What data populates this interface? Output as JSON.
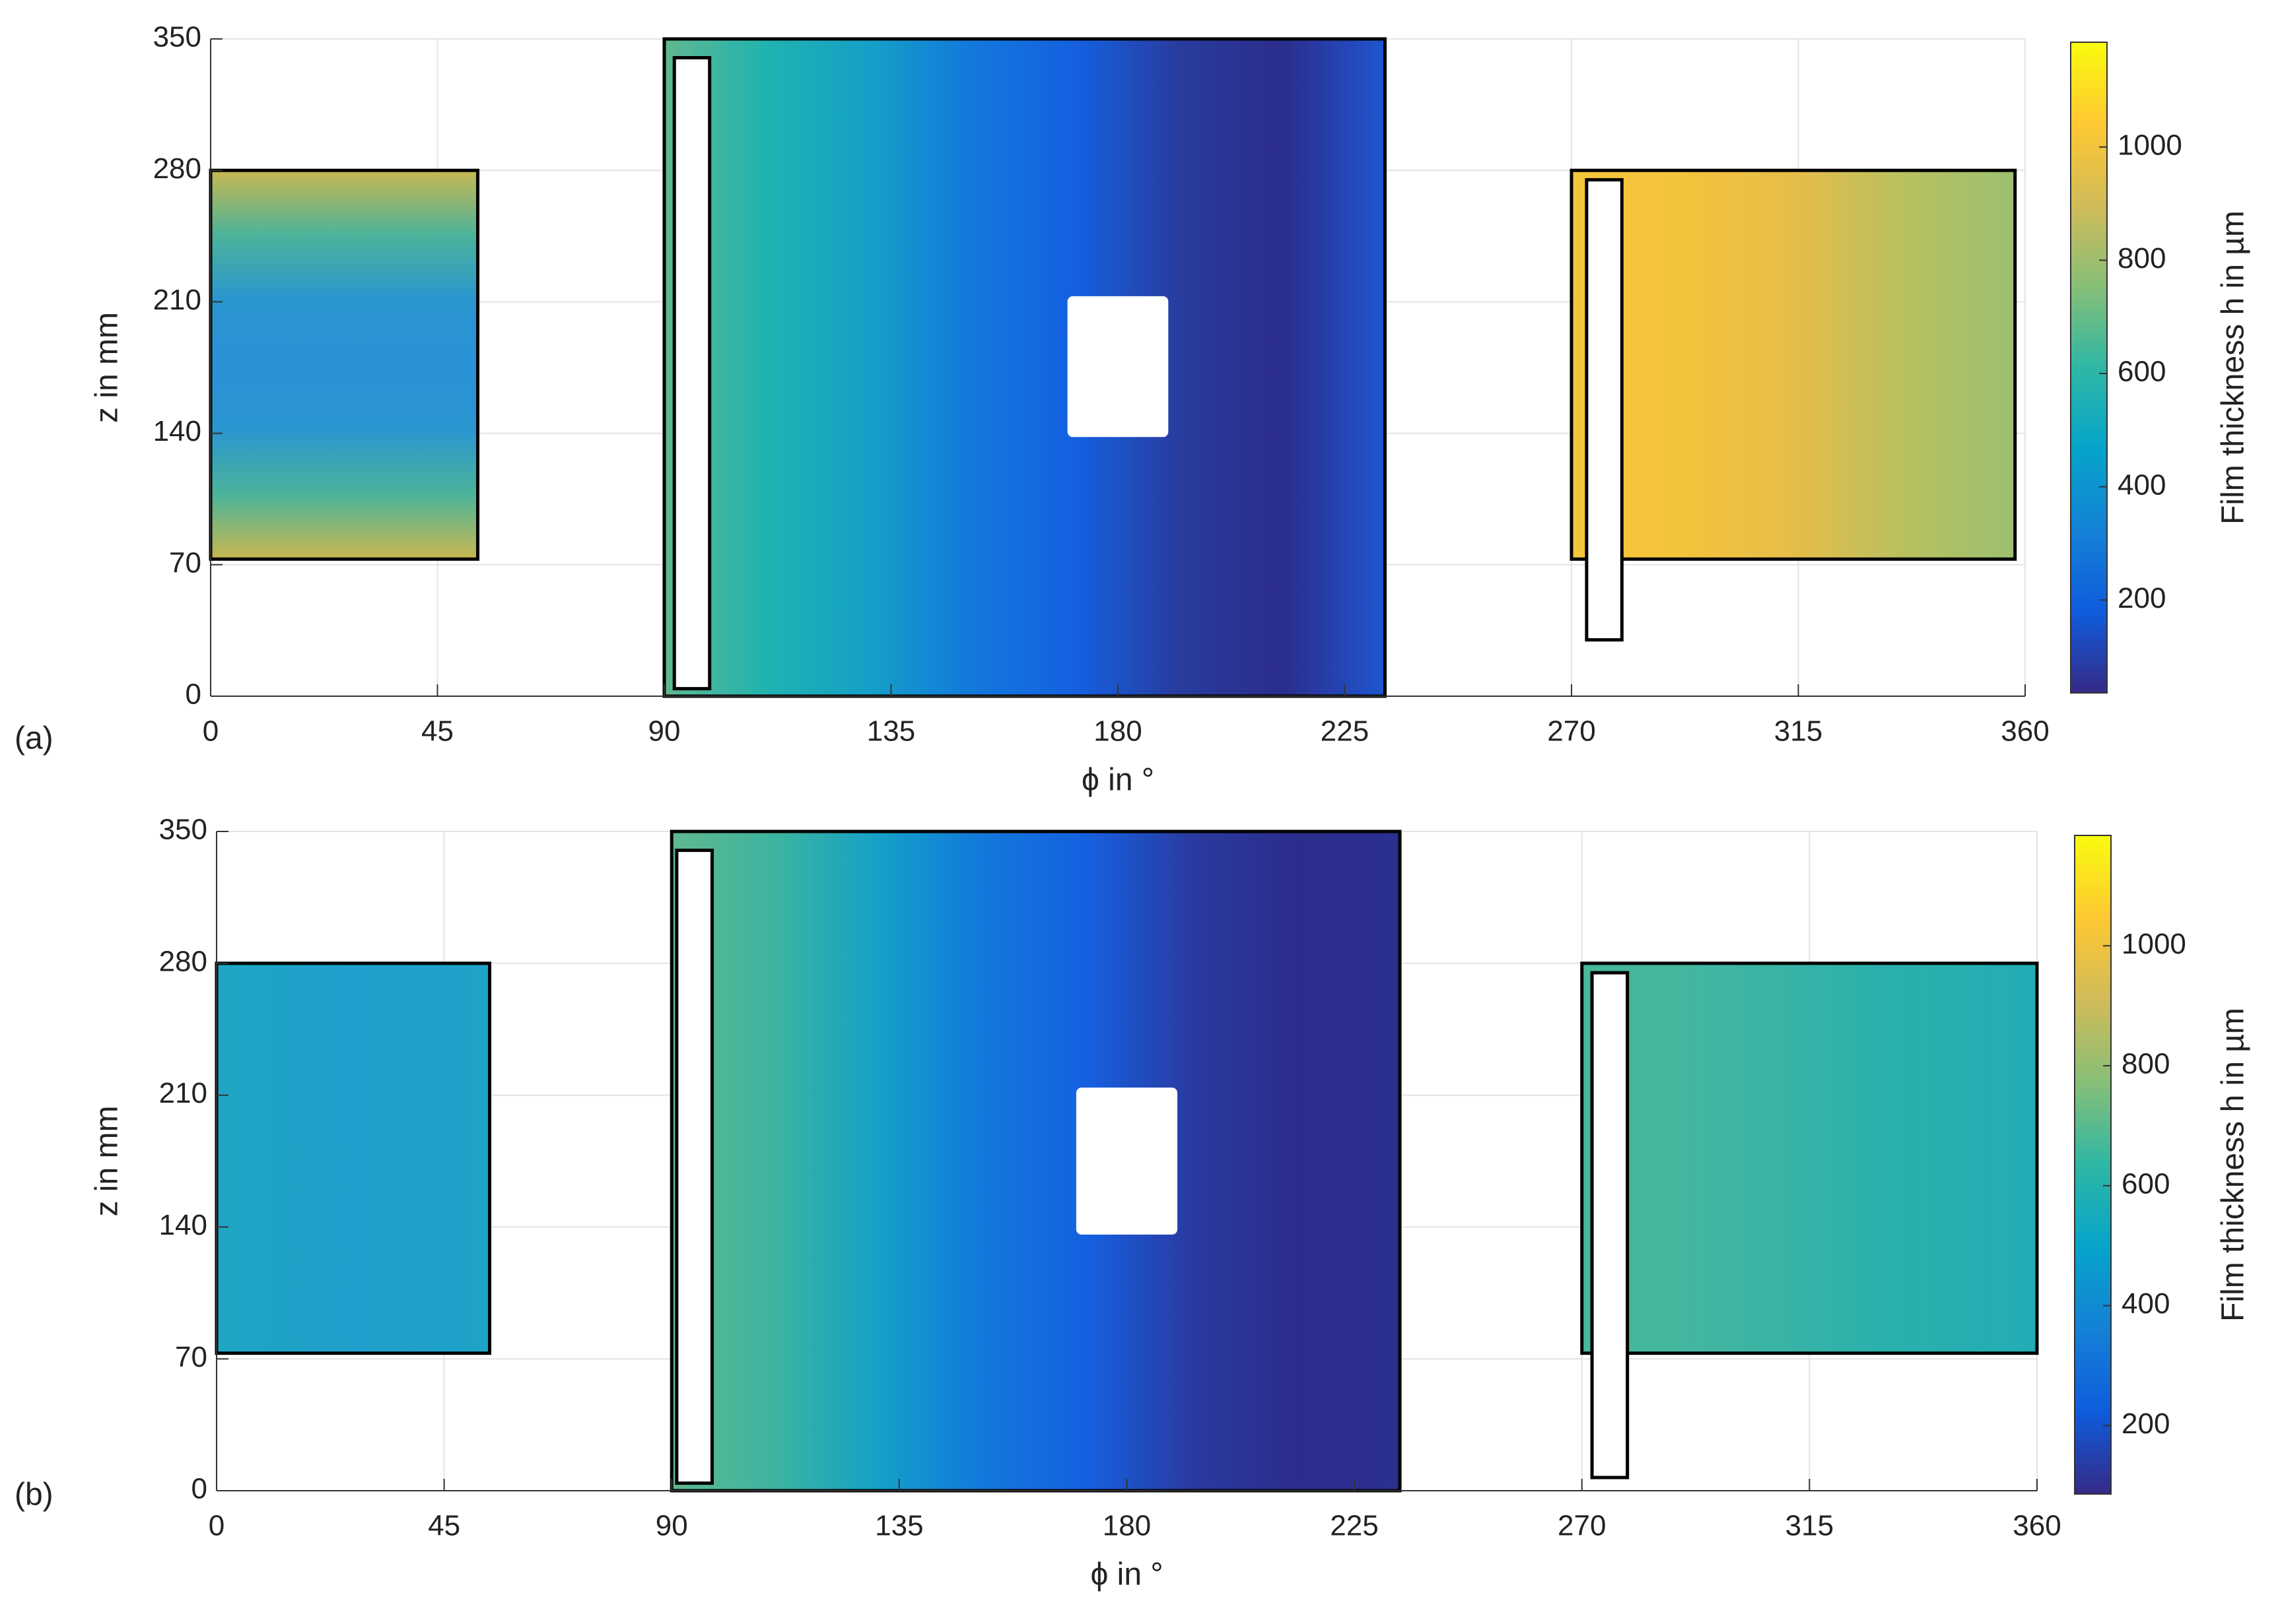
{
  "chart_data": [
    {
      "type": "heatmap",
      "panel_label": "(a)",
      "xlabel": "ϕ in °",
      "ylabel": "z in mm",
      "colorbar_label": "Film thickness h in µm",
      "xlim": [
        0,
        360
      ],
      "ylim": [
        0,
        350
      ],
      "xticks": [
        0,
        45,
        90,
        135,
        180,
        225,
        270,
        315,
        360
      ],
      "yticks": [
        0,
        70,
        140,
        210,
        280,
        350
      ],
      "clim": [
        36,
        1185
      ],
      "cticks": [
        200,
        400,
        600,
        800,
        1000
      ],
      "grid": true,
      "colormap": [
        "#352a87",
        "#0f5cdd",
        "#1481d6",
        "#06a4ca",
        "#2eb7a4",
        "#87bf77",
        "#d1bb59",
        "#fec832",
        "#f9fb0e"
      ],
      "regions": [
        {
          "phi": [
            0,
            53
          ],
          "z": [
            73,
            280
          ],
          "dir": "y",
          "colors": [
            "#c8b850",
            "#4cb39a",
            "#2a96d0",
            "#2a92d6",
            "#2a96d0",
            "#4cb39a",
            "#c8b850"
          ]
        },
        {
          "phi": [
            90,
            233
          ],
          "z": [
            0,
            350
          ],
          "dir": "x",
          "colors": [
            "#60b890",
            "#1fb3b0",
            "#14a0c8",
            "#1278dc",
            "#1560e0",
            "#283c9e",
            "#2b2d8c",
            "#1f56d0"
          ]
        },
        {
          "phi": [
            270,
            358
          ],
          "z": [
            73,
            280
          ],
          "dir": "x",
          "colors": [
            "#f6c63a",
            "#f4c33c",
            "#e6bd48",
            "#b8c060",
            "#9cc070"
          ]
        }
      ],
      "slots": [
        {
          "phi": [
            92,
            99
          ],
          "z": [
            4,
            340
          ]
        },
        {
          "phi": [
            273,
            280
          ],
          "z": [
            30,
            275
          ]
        }
      ],
      "holes": [
        {
          "phi": [
            170,
            190
          ],
          "z": [
            138,
            213
          ]
        }
      ]
    },
    {
      "type": "heatmap",
      "panel_label": "(b)",
      "xlabel": "ϕ in °",
      "ylabel": "z in mm",
      "colorbar_label": "Film thickness h in µm",
      "xlim": [
        0,
        360
      ],
      "ylim": [
        0,
        350
      ],
      "xticks": [
        0,
        45,
        90,
        135,
        180,
        225,
        270,
        315,
        360
      ],
      "yticks": [
        0,
        70,
        140,
        210,
        280,
        350
      ],
      "clim": [
        86,
        1184
      ],
      "cticks": [
        200,
        400,
        600,
        800,
        1000
      ],
      "grid": true,
      "colormap": [
        "#352a87",
        "#0f5cdd",
        "#1481d6",
        "#06a4ca",
        "#2eb7a4",
        "#87bf77",
        "#d1bb59",
        "#fec832",
        "#f9fb0e"
      ],
      "regions": [
        {
          "phi": [
            0,
            54
          ],
          "z": [
            73,
            280
          ],
          "dir": "x",
          "colors": [
            "#1ea6c4",
            "#1f9fcc",
            "#1fa3c8"
          ]
        },
        {
          "phi": [
            90,
            234
          ],
          "z": [
            0,
            350
          ],
          "dir": "x",
          "colors": [
            "#60b890",
            "#3cb4a0",
            "#14a0c8",
            "#1278dc",
            "#1560e0",
            "#2a3aa0",
            "#2b2d8c",
            "#2b2f90"
          ]
        },
        {
          "phi": [
            270,
            360
          ],
          "z": [
            73,
            280
          ],
          "dir": "x",
          "colors": [
            "#48b898",
            "#3fb5a2",
            "#2ab0ac",
            "#22acb4"
          ]
        }
      ],
      "slots": [
        {
          "phi": [
            91,
            98
          ],
          "z": [
            4,
            340
          ]
        },
        {
          "phi": [
            272,
            279
          ],
          "z": [
            7,
            275
          ]
        }
      ],
      "holes": [
        {
          "phi": [
            170,
            190
          ],
          "z": [
            136,
            214
          ]
        }
      ]
    }
  ]
}
